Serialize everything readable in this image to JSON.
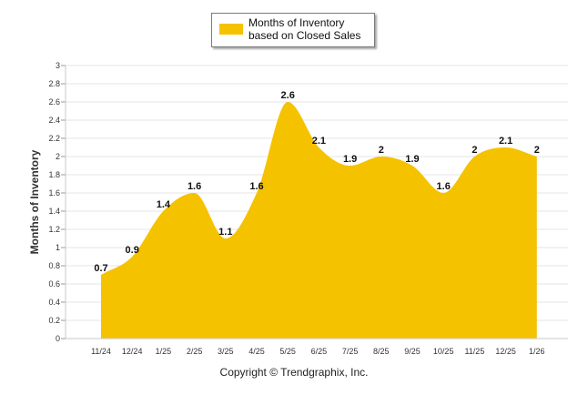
{
  "chart_data": {
    "type": "area",
    "title": "",
    "xlabel": "",
    "ylabel": "Months of Inventory",
    "ylim": [
      0,
      3
    ],
    "yticks": [
      "0",
      "0.2",
      "0.4",
      "0.6",
      "0.8",
      "1",
      "1.2",
      "1.4",
      "1.6",
      "1.8",
      "2",
      "2.2",
      "2.4",
      "2.6",
      "2.8",
      "3"
    ],
    "grid": true,
    "legend_position": "top-center",
    "categories": [
      "11/24",
      "12/24",
      "1/25",
      "2/25",
      "3/25",
      "4/25",
      "5/25",
      "6/25",
      "7/25",
      "8/25",
      "9/25",
      "10/25",
      "11/25",
      "12/25",
      "1/26"
    ],
    "series": [
      {
        "name": "Months of Inventory based on Closed Sales",
        "color": "#f5c200",
        "values": [
          0.7,
          0.9,
          1.4,
          1.6,
          1.1,
          1.6,
          2.6,
          2.1,
          1.9,
          2,
          1.9,
          1.6,
          2,
          2.1,
          2
        ],
        "labels": [
          "0.7",
          "0.9",
          "1.4",
          "1.6",
          "1.1",
          "1.6",
          "2.6",
          "2.1",
          "1.9",
          "2",
          "1.9",
          "1.6",
          "2",
          "2.1",
          "2"
        ]
      }
    ]
  },
  "legend": {
    "label": "Months of Inventory based on Closed Sales"
  },
  "footer": {
    "copyright": "Copyright © Trendgraphix, Inc."
  }
}
